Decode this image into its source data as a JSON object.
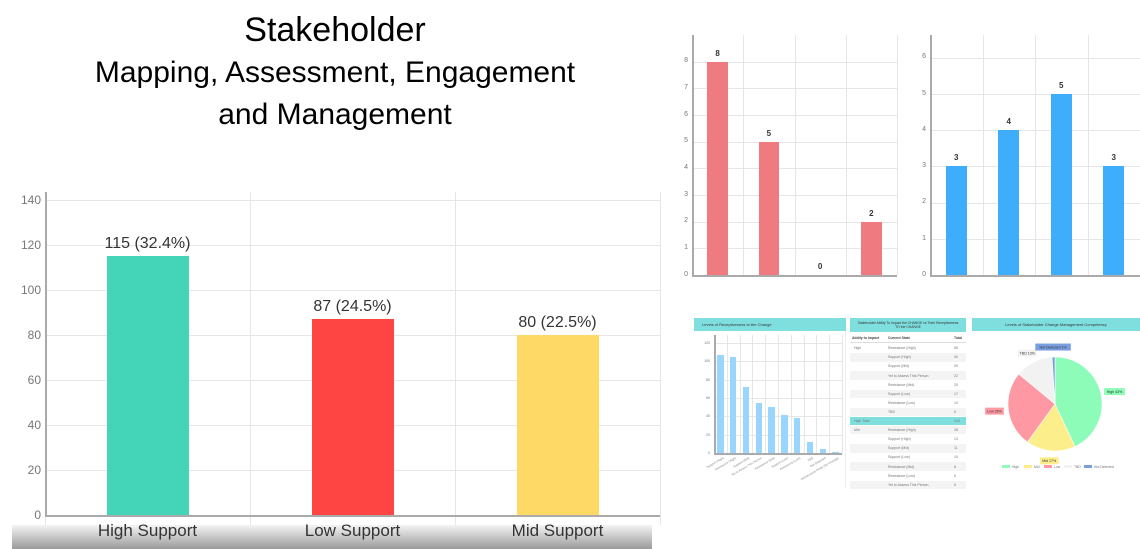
{
  "title": {
    "line1": "Stakeholder",
    "line2": "Mapping, Assessment, Engagement",
    "line3": "and Management"
  },
  "chart_data": [
    {
      "type": "bar",
      "title": "",
      "categories": [
        "High Support",
        "Low Support",
        "Mid Support"
      ],
      "values": [
        115,
        87,
        80
      ],
      "data_labels": [
        "115 (32.4%)",
        "87 (24.5%)",
        "80 (22.5%)"
      ],
      "colors": [
        "#44d4b7",
        "#ff4444",
        "#ffd966"
      ],
      "yticks": [
        "0",
        "20",
        "40",
        "60",
        "80",
        "100",
        "120",
        "140"
      ],
      "ylim": [
        0,
        140
      ],
      "xlabel": "",
      "ylabel": "",
      "grid": true
    },
    {
      "type": "bar",
      "categories": [
        "",
        "",
        "",
        ""
      ],
      "values": [
        8,
        5,
        0,
        2
      ],
      "data_labels": [
        "8",
        "5",
        "0",
        "2"
      ],
      "color": "#ef7b80",
      "yticks": [
        "0",
        "1",
        "2",
        "3",
        "4",
        "5",
        "6",
        "7",
        "8"
      ],
      "ylim": [
        0,
        8.7
      ],
      "grid": true
    },
    {
      "type": "bar",
      "categories": [
        "",
        "",
        "",
        ""
      ],
      "values": [
        3,
        4,
        5,
        3
      ],
      "data_labels": [
        "3",
        "4",
        "5",
        "3"
      ],
      "color": "#3eaefc",
      "yticks": [
        "0",
        "1",
        "2",
        "3",
        "4",
        "5",
        "6"
      ],
      "ylim": [
        0,
        6.4
      ],
      "grid": true
    },
    {
      "type": "bar",
      "title": "Levels of Receptiveness to the Change",
      "categories": [
        "Support (High)",
        "Resistance (High)",
        "Support (Mid)",
        "Yet to Assess This Person",
        "Resistance (Mid)",
        "Support (Low)",
        "Resistance (Low)",
        "TBD",
        "Not Detected",
        "Maintenance Mode (No Change)"
      ],
      "values": [
        107,
        105,
        72,
        55,
        50,
        42,
        38,
        12,
        4,
        1
      ],
      "color": "#99d5fc",
      "yticks": [
        "0",
        "20",
        "40",
        "60",
        "80",
        "100",
        "120"
      ],
      "ylim": [
        0,
        120
      ],
      "grid": true
    },
    {
      "type": "table",
      "title": "Stakeholder Ability To Impact the CHANGE vs Their Receptiveness TO the CHANGE",
      "columns": [
        "Ability to Impact",
        "Current State",
        "Total"
      ],
      "rows": [
        [
          "High",
          "Resistance (High)",
          "56"
        ],
        [
          "",
          "Support (High)",
          "40"
        ],
        [
          "",
          "Support (Mid)",
          "39"
        ],
        [
          "",
          "Yet to Assess This Person",
          "22"
        ],
        [
          "",
          "Resistance (Mid)",
          "20"
        ],
        [
          "",
          "Support (Low)",
          "17"
        ],
        [
          "",
          "Resistance (Low)",
          "10"
        ],
        [
          "",
          "TBD",
          "6"
        ],
        [
          "High Total",
          "",
          "210"
        ],
        [
          "Mid",
          "Resistance (High)",
          "28"
        ],
        [
          "",
          "Support (High)",
          "13"
        ],
        [
          "",
          "Support (Mid)",
          "11"
        ],
        [
          "",
          "Support (Low)",
          "10"
        ],
        [
          "",
          "Resistance (Mid)",
          "8"
        ],
        [
          "",
          "Resistance (Low)",
          "6"
        ],
        [
          "",
          "Yet to Assess This Person",
          "5"
        ]
      ]
    },
    {
      "type": "pie",
      "title": "Levels of Stakeholder Change Management Competency",
      "labels": [
        "High",
        "Mid",
        "Low",
        "TBD",
        "Not Detected"
      ],
      "values": [
        43,
        17,
        26,
        13,
        1
      ],
      "slice_labels": [
        "High 43%",
        "Mid 17%",
        "Low 26%",
        "TBD 13%",
        "Not Detected 1%"
      ],
      "colors": [
        "#8cfcb8",
        "#fdee8c",
        "#fe98a2",
        "#f2f2f2",
        "#7a9ee0"
      ],
      "legend_position": "bottom"
    }
  ]
}
